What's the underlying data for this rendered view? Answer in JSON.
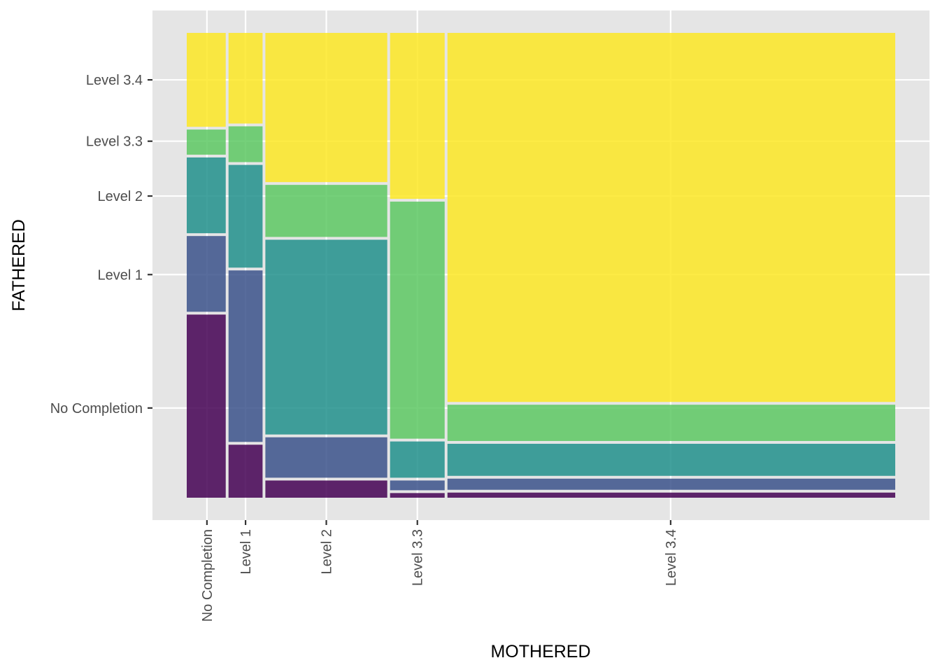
{
  "chart_data": {
    "type": "mosaic",
    "xlabel": "MOTHERED",
    "ylabel": "FATHERED",
    "x_categories": [
      "No Completion",
      "Level 1",
      "Level 2",
      "Level 3.3",
      "Level 3.4"
    ],
    "y_categories": [
      "No Completion",
      "Level 1",
      "Level 2",
      "Level 3.3",
      "Level 3.4"
    ],
    "x_widths": [
      0.057,
      0.109,
      0.285,
      0.366,
      1.0
    ],
    "y_tick_positions": [
      0.193,
      0.48,
      0.649,
      0.767,
      0.899
    ],
    "segments": [
      {
        "x": "No Completion",
        "fractions": [
          0.397,
          0.169,
          0.169,
          0.06,
          0.205
        ]
      },
      {
        "x": "Level 1",
        "fractions": [
          0.117,
          0.375,
          0.227,
          0.083,
          0.198
        ]
      },
      {
        "x": "Level 2",
        "fractions": [
          0.04,
          0.093,
          0.425,
          0.118,
          0.324
        ]
      },
      {
        "x": "Level 3.3",
        "fractions": [
          0.013,
          0.027,
          0.084,
          0.516,
          0.36
        ]
      },
      {
        "x": "Level 3.4",
        "fractions": [
          0.014,
          0.03,
          0.075,
          0.084,
          0.797
        ]
      }
    ],
    "colors": [
      "#440154",
      "#3B528B",
      "#21908C",
      "#5DC863",
      "#FDE725"
    ],
    "fill_opacity": 0.85,
    "panel_background": "#E5E5E5",
    "grid": true,
    "legend": "none"
  }
}
